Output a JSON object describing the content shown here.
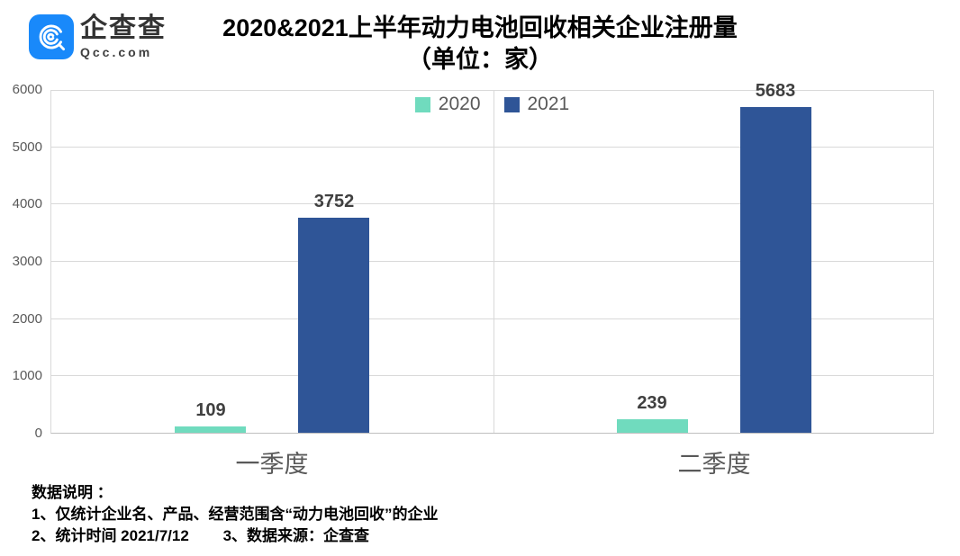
{
  "logo": {
    "name": "企查查",
    "domain": "Qcc.com",
    "brand_color": "#1989FA"
  },
  "title": {
    "line1": "2020&2021上半年动力电池回收相关企业注册量",
    "line2": "（单位：家）"
  },
  "chart_data": {
    "type": "bar",
    "title": "2020&2021上半年动力电池回收相关企业注册量（单位：家）",
    "categories": [
      "一季度",
      "二季度"
    ],
    "series": [
      {
        "name": "2020",
        "color": "#70DBBE",
        "values": [
          109,
          239
        ]
      },
      {
        "name": "2021",
        "color": "#2F5597",
        "values": [
          3752,
          5683
        ]
      }
    ],
    "ylim": [
      0,
      6000
    ],
    "yticks": [
      0,
      1000,
      2000,
      3000,
      4000,
      5000,
      6000
    ],
    "grid": "horizontal gridlines + vertical category separators, light gray",
    "legend_position": "top-center",
    "colors": {
      "grid": "#D9D9D9",
      "axis_line": "#BFBFBF",
      "tick_text": "#595959",
      "value_text": "#404040"
    }
  },
  "notes": {
    "line1": "数据说明 ：",
    "line2": "1、仅统计企业名、产品、经营范围含“动力电池回收”的企业",
    "line3": "2、统计时间 2021/7/12        3、数据来源：企查查"
  }
}
